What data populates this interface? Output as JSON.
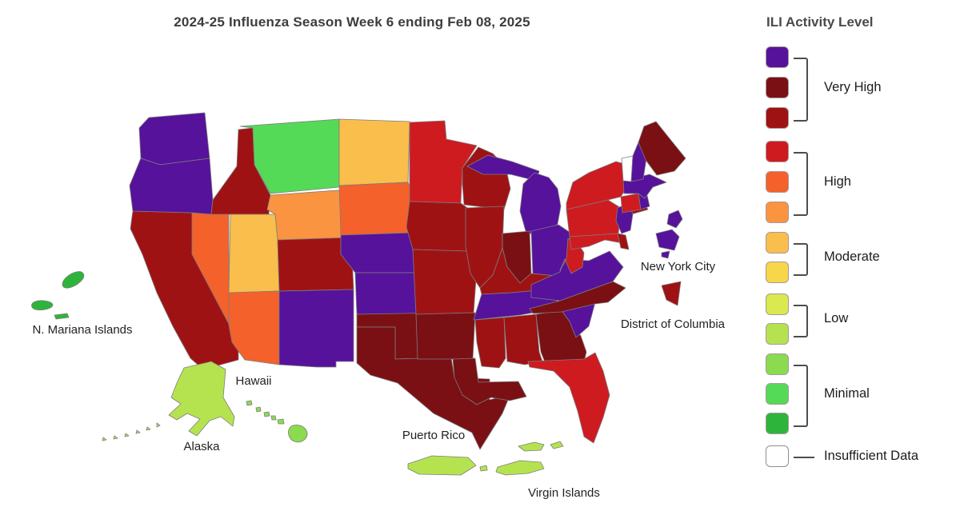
{
  "title": "2024-25 Influenza Season Week 6 ending Feb 08, 2025",
  "colors": {
    "L13": "#56129B",
    "L12": "#7A1014",
    "L11": "#9F1214",
    "L10": "#CE1B20",
    "L9": "#F4612B",
    "L8": "#FA9440",
    "L7": "#F9BE4B",
    "L6": "#F8D64A",
    "L5": "#D9E94F",
    "L4": "#B5E350",
    "L3": "#8BDB50",
    "L2": "#55DA57",
    "L1": "#2DB53B",
    "NA": "#FFFFFF"
  },
  "legend": {
    "title": "ILI Activity Level",
    "groups": [
      {
        "label": "Very High",
        "levels": [
          "L13",
          "L12",
          "L11"
        ]
      },
      {
        "label": "High",
        "levels": [
          "L10",
          "L9",
          "L8"
        ]
      },
      {
        "label": "Moderate",
        "levels": [
          "L7",
          "L6"
        ]
      },
      {
        "label": "Low",
        "levels": [
          "L5",
          "L4"
        ]
      },
      {
        "label": "Minimal",
        "levels": [
          "L3",
          "L2",
          "L1"
        ]
      },
      {
        "label": "Insufficient Data",
        "levels": [
          "NA"
        ]
      }
    ]
  },
  "map": {
    "labels": {
      "nmi": "N. Mariana Islands",
      "hawaii": "Hawaii",
      "alaska": "Alaska",
      "pr": "Puerto Rico",
      "vi": "Virgin Islands",
      "nyc": "New York City",
      "dc": "District of Columbia"
    },
    "states": {
      "WA": "L13",
      "OR": "L13",
      "CA": "L11",
      "NV": "L9",
      "ID": "L11",
      "MT": "L2",
      "WY": "L8",
      "UT": "L7",
      "AZ": "L9",
      "CO": "L11",
      "NM": "L13",
      "ND": "L7",
      "SD": "L9",
      "NE": "L13",
      "KS": "L13",
      "OK": "L12",
      "TX": "L12",
      "MN": "L10",
      "IA": "L11",
      "MO": "L11",
      "AR": "L12",
      "LA": "L12",
      "WI": "L11",
      "IL": "L11",
      "MI": "L13",
      "IN": "L12",
      "OH": "L13",
      "KY": "L11",
      "TN": "L13",
      "MS": "L11",
      "AL": "L11",
      "GA": "L12",
      "FL": "L10",
      "SC": "L13",
      "NC": "L12",
      "VA": "L13",
      "WV": "L10",
      "MD": "L10",
      "DE": "L11",
      "NJ": "L13",
      "PA": "L10",
      "NY": "L10",
      "LI": "L11",
      "CT": "L10",
      "RI": "L13",
      "MA": "L13",
      "VT": "NA",
      "NH": "L13",
      "ME": "L12",
      "NYC": "L13",
      "DC": "L11",
      "AK": "L4",
      "HI": "L3",
      "PR": "L4",
      "VI": "L4",
      "MP": "L1"
    }
  }
}
